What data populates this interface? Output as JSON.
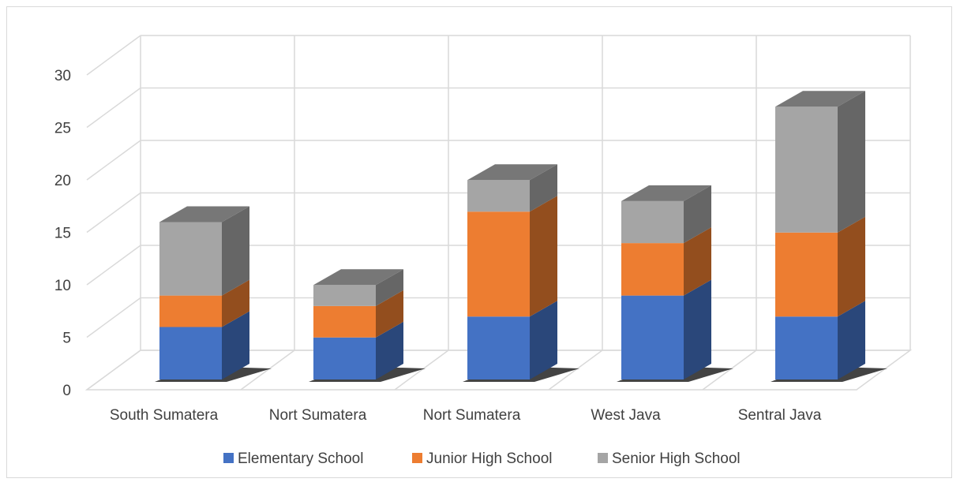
{
  "chart_data": {
    "type": "bar",
    "stacked": true,
    "style": "3d",
    "categories": [
      "South Sumatera",
      "Nort Sumatera",
      "Nort Sumatera",
      "West Java",
      "Sentral Java"
    ],
    "series": [
      {
        "name": "Elementary School",
        "color": "#4472c4",
        "values": [
          5,
          4,
          6,
          8,
          6
        ]
      },
      {
        "name": "Junior High School",
        "color": "#ed7d31",
        "values": [
          3,
          3,
          10,
          5,
          8
        ]
      },
      {
        "name": "Senior High School",
        "color": "#a5a5a5",
        "values": [
          7,
          2,
          3,
          4,
          12
        ]
      }
    ],
    "y_ticks": [
      0,
      5,
      10,
      15,
      20,
      25,
      30
    ],
    "ylim": [
      0,
      30
    ],
    "grid": true,
    "legend_position": "bottom",
    "title": "",
    "xlabel": "",
    "ylabel": ""
  }
}
